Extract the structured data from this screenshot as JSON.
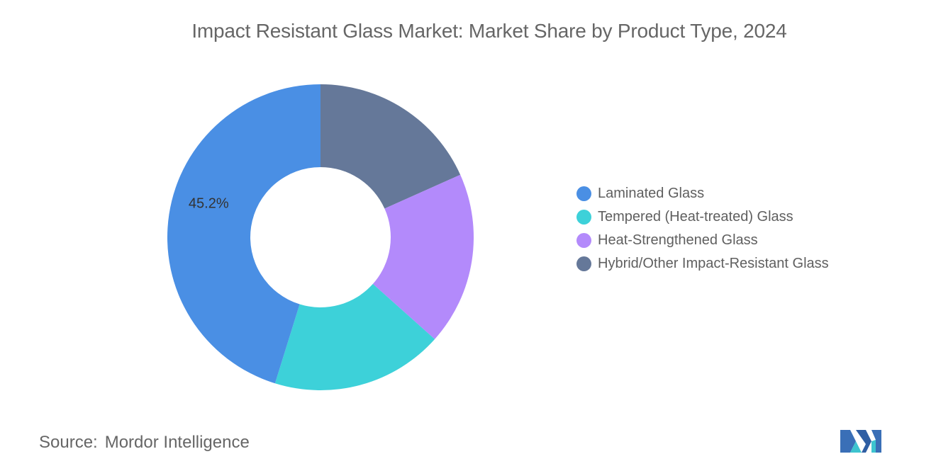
{
  "header": {
    "title": "Impact Resistant Glass Market: Market Share by Product Type, 2024"
  },
  "footer": {
    "source_label": "Source:",
    "source_value": "Mordor Intelligence"
  },
  "logo": {
    "icon": "mordor-intelligence-logo"
  },
  "chart_data": {
    "type": "pie",
    "donut": true,
    "title": "Impact Resistant Glass Market: Market Share by Product Type, 2024",
    "legend_position": "right",
    "start": "top, clockwise",
    "slices": [
      {
        "label": "Hybrid/Other Impact-Resistant Glass",
        "value": 18.3,
        "color": "#657899",
        "show_label": false
      },
      {
        "label": "Heat-Strengthened Glass",
        "value": 18.3,
        "color": "#b38afb",
        "show_label": false
      },
      {
        "label": "Tempered (Heat-treated) Glass",
        "value": 18.2,
        "color": "#3dd1d9",
        "show_label": false
      },
      {
        "label": "Laminated Glass",
        "value": 45.2,
        "color": "#4a8fe4",
        "show_label": true,
        "display_label": "45.2%"
      }
    ],
    "legend": [
      {
        "label": "Laminated Glass",
        "color": "#4a8fe4"
      },
      {
        "label": "Tempered (Heat-treated) Glass",
        "color": "#3dd1d9"
      },
      {
        "label": "Heat-Strengthened Glass",
        "color": "#b38afb"
      },
      {
        "label": "Hybrid/Other Impact-Resistant Glass",
        "color": "#657899"
      }
    ]
  }
}
